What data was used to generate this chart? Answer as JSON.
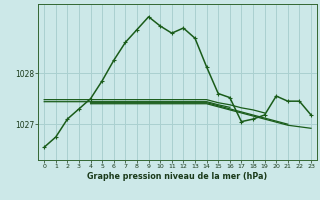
{
  "title": "Graphe pression niveau de la mer (hPa)",
  "bg_color": "#cce8e8",
  "grid_color": "#aad0d0",
  "line_color": "#1a5c1a",
  "xlim": [
    -0.5,
    23.5
  ],
  "ylim": [
    1026.3,
    1029.35
  ],
  "yticks": [
    1027,
    1028
  ],
  "xticks": [
    0,
    1,
    2,
    3,
    4,
    5,
    6,
    7,
    8,
    9,
    10,
    11,
    12,
    13,
    14,
    15,
    16,
    17,
    18,
    19,
    20,
    21,
    22,
    23
  ],
  "series": {
    "main": [
      1026.55,
      1026.75,
      1027.1,
      1027.3,
      1027.5,
      1027.85,
      1028.25,
      1028.6,
      1028.85,
      1029.1,
      1028.92,
      1028.78,
      1028.88,
      1028.68,
      1028.12,
      1027.6,
      1027.52,
      1027.05,
      1027.1,
      1027.18,
      1027.55,
      1027.45,
      1027.45,
      1027.18
    ],
    "flat1": [
      1027.48,
      1027.48,
      1027.48,
      1027.48,
      1027.48,
      1027.48,
      1027.48,
      1027.48,
      1027.48,
      1027.48,
      1027.48,
      1027.48,
      1027.48,
      1027.48,
      1027.48,
      1027.42,
      1027.38,
      1027.32,
      1027.28,
      1027.22,
      null,
      null,
      null,
      null
    ],
    "flat2": [
      1027.44,
      1027.44,
      1027.44,
      1027.44,
      1027.44,
      1027.44,
      1027.44,
      1027.44,
      1027.44,
      1027.44,
      1027.44,
      1027.44,
      1027.44,
      1027.44,
      1027.44,
      1027.38,
      1027.33,
      null,
      null,
      null,
      null,
      null,
      null,
      null
    ],
    "flat3": [
      null,
      null,
      null,
      null,
      1027.42,
      1027.42,
      1027.42,
      1027.42,
      1027.42,
      1027.42,
      1027.42,
      1027.42,
      1027.42,
      1027.42,
      1027.42,
      1027.36,
      1027.3,
      1027.24,
      1027.18,
      1027.12,
      1027.06,
      1027.0,
      null,
      null
    ],
    "flat4": [
      null,
      null,
      null,
      null,
      1027.4,
      1027.4,
      1027.4,
      1027.4,
      1027.4,
      1027.4,
      1027.4,
      1027.4,
      1027.4,
      1027.4,
      1027.4,
      1027.34,
      1027.28,
      1027.22,
      1027.16,
      1027.1,
      1027.04,
      1026.98,
      1026.95,
      1026.92
    ]
  }
}
